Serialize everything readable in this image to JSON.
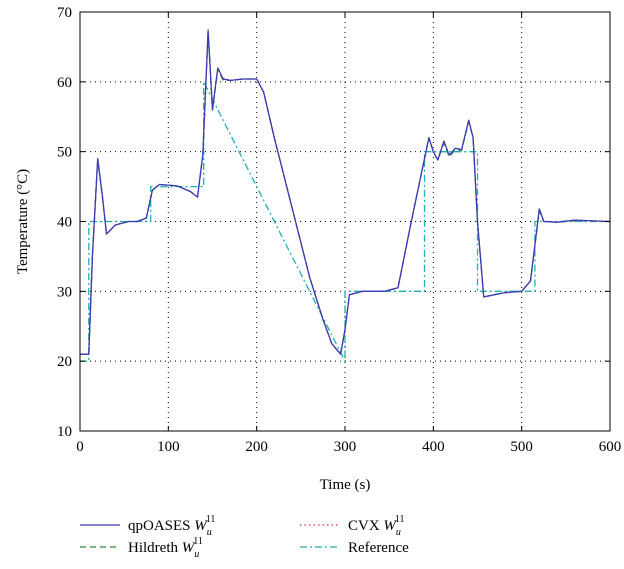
{
  "chart_data": {
    "type": "line",
    "title": "",
    "xlabel": "Time (s)",
    "ylabel": "Temperature (°C)",
    "xlim": [
      0,
      600
    ],
    "ylim": [
      10,
      70
    ],
    "x_ticks": [
      "0",
      "100",
      "200",
      "300",
      "400",
      "500",
      "600"
    ],
    "y_ticks": [
      "10",
      "20",
      "30",
      "40",
      "50",
      "60",
      "70"
    ],
    "x_tick_values": [
      0,
      100,
      200,
      300,
      400,
      500,
      600
    ],
    "y_tick_values": [
      10,
      20,
      30,
      40,
      50,
      60,
      70
    ],
    "grid": true,
    "legend_position": "bottom",
    "legend": {
      "qpoases": {
        "base": "qpOASES ",
        "var": "W",
        "sub": "u",
        "sup": "11"
      },
      "cvx": {
        "base": "CVX ",
        "var": "W",
        "sub": "u",
        "sup": "11"
      },
      "hildreth": {
        "base": "Hildreth ",
        "var": "W",
        "sub": "u",
        "sup": "11"
      },
      "reference": {
        "base": "Reference"
      }
    },
    "series": [
      {
        "key": "reference",
        "color": "#20b0b0",
        "dash": "7,3,2,3",
        "x": [
          0,
          10,
          10,
          80,
          80,
          140,
          140,
          300,
          300,
          390,
          390,
          450,
          450,
          515,
          515,
          600
        ],
        "y": [
          20,
          20,
          40,
          40,
          45,
          45,
          60,
          20,
          30,
          30,
          50,
          50,
          30,
          30,
          40,
          40
        ]
      },
      {
        "key": "cvx",
        "color": "#e0303a",
        "dash": "1.5,3",
        "x": [
          0,
          10,
          14,
          20,
          25,
          30,
          40,
          55,
          65,
          75,
          82,
          90,
          110,
          125,
          133,
          139,
          145,
          150,
          156,
          162,
          170,
          185,
          200,
          208,
          220,
          240,
          260,
          275,
          285,
          295,
          300,
          305,
          320,
          345,
          360,
          375,
          395,
          400,
          405,
          412,
          418,
          425,
          432,
          440,
          445,
          450,
          457,
          465,
          480,
          500,
          510,
          520,
          525,
          540,
          560,
          600
        ],
        "y": [
          21,
          21,
          35,
          49,
          44,
          38.2,
          39.5,
          40,
          40,
          40.5,
          44.5,
          45.3,
          45.1,
          44.3,
          43.5,
          49.5,
          67.5,
          56.3,
          62,
          60.5,
          60.2,
          60.4,
          60.4,
          58.5,
          52,
          42,
          32,
          26,
          22.5,
          21,
          24.5,
          29.5,
          30,
          30,
          30.5,
          40,
          52,
          50,
          48.8,
          51.5,
          49.5,
          50.5,
          50.3,
          54.5,
          52,
          40,
          29.2,
          29.4,
          29.8,
          30,
          31.5,
          41.8,
          40,
          39.9,
          40.2,
          40
        ]
      },
      {
        "key": "hildreth",
        "color": "#2e8b3a",
        "dash": "6,4",
        "x": [
          0,
          10,
          14,
          20,
          25,
          30,
          40,
          55,
          65,
          75,
          82,
          90,
          110,
          125,
          133,
          139,
          145,
          150,
          156,
          162,
          170,
          185,
          200,
          208,
          220,
          240,
          260,
          275,
          285,
          295,
          300,
          305,
          320,
          345,
          360,
          375,
          395,
          400,
          405,
          412,
          418,
          425,
          432,
          440,
          445,
          450,
          457,
          465,
          480,
          500,
          510,
          520,
          525,
          540,
          560,
          600
        ],
        "y": [
          21,
          21,
          35,
          48.8,
          44,
          38.2,
          39.5,
          40,
          40,
          40.5,
          44.5,
          45.3,
          45.1,
          44.3,
          43.5,
          49.5,
          67,
          56,
          61.8,
          60.2,
          60.2,
          60.4,
          60.4,
          58.5,
          52,
          42,
          32,
          26,
          22.5,
          21,
          24.5,
          29.5,
          30,
          30,
          30.5,
          40,
          52,
          50,
          48.8,
          51.2,
          49.3,
          50.3,
          50.2,
          54.3,
          52,
          40,
          29.2,
          29.4,
          29.8,
          30,
          31.5,
          41.5,
          40,
          39.9,
          40.1,
          40
        ]
      },
      {
        "key": "qpoases",
        "color": "#3a3ab8",
        "dash": "",
        "x": [
          0,
          10,
          14,
          20,
          25,
          30,
          40,
          55,
          65,
          75,
          82,
          90,
          110,
          125,
          133,
          139,
          145,
          150,
          156,
          162,
          170,
          185,
          200,
          208,
          220,
          240,
          260,
          275,
          285,
          295,
          300,
          305,
          320,
          345,
          360,
          375,
          395,
          400,
          405,
          412,
          418,
          425,
          432,
          440,
          445,
          450,
          457,
          465,
          480,
          500,
          510,
          520,
          525,
          540,
          560,
          600
        ],
        "y": [
          21,
          21,
          35,
          49,
          44,
          38.2,
          39.5,
          40,
          40,
          40.5,
          44.5,
          45.3,
          45.1,
          44.3,
          43.5,
          49.5,
          67.3,
          56,
          62,
          60.4,
          60.2,
          60.4,
          60.4,
          58.5,
          52,
          42,
          32,
          26,
          22.5,
          21,
          24.5,
          29.5,
          30,
          30,
          30.5,
          40,
          52,
          50,
          48.8,
          51.5,
          49.5,
          50.5,
          50.3,
          54.5,
          52,
          40,
          29.2,
          29.4,
          29.8,
          30,
          31.5,
          41.8,
          40,
          39.9,
          40.2,
          40
        ]
      }
    ]
  }
}
